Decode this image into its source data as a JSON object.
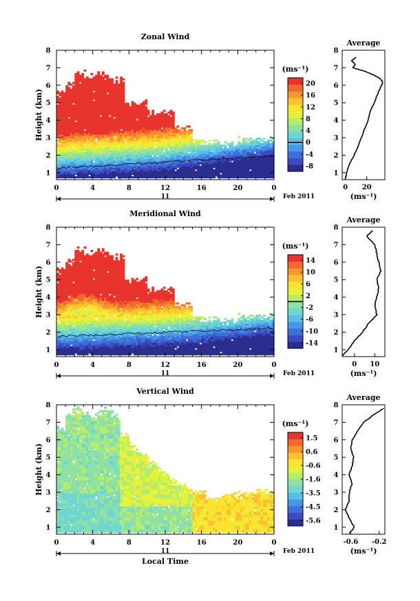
{
  "chart_data": [
    {
      "type": "heatmap",
      "title": "Zonal Wind",
      "ylabel": "Height (km)",
      "xlabel": "",
      "x_ticks": [
        "0",
        "4",
        "8",
        "12",
        "16",
        "20",
        "0"
      ],
      "y_ticks": [
        "1",
        "2",
        "3",
        "4",
        "5",
        "6",
        "7",
        "8"
      ],
      "xlim": [
        0,
        24
      ],
      "ylim": [
        0.6,
        8
      ],
      "date_label": "11",
      "month_label": "Feb 2011",
      "colorbar": {
        "unit": "(ms⁻¹)",
        "ticks": [
          "20",
          "16",
          "12",
          "8",
          "4",
          "0",
          "-4",
          "-8"
        ],
        "range": [
          -10,
          22
        ],
        "zero_line": 0
      },
      "profile": {
        "title": "Average",
        "x_ticks": [
          "0",
          "20"
        ],
        "xlim": [
          -3,
          37
        ],
        "unit": "(ms⁻¹)",
        "height": [
          0.65,
          1.0,
          1.5,
          2.0,
          2.5,
          3.0,
          3.5,
          4.0,
          4.5,
          5.0,
          5.5,
          6.0,
          6.2,
          6.4,
          6.6,
          6.8,
          7.0,
          7.2,
          7.4,
          7.6
        ],
        "value": [
          0,
          1,
          4,
          8,
          12,
          15,
          18,
          21,
          23,
          27,
          30,
          34,
          35,
          32,
          26,
          18,
          7,
          9,
          6,
          10
        ]
      },
      "field": "zonal"
    },
    {
      "type": "heatmap",
      "title": "Meridional Wind",
      "ylabel": "Height (km)",
      "xlabel": "",
      "x_ticks": [
        "0",
        "4",
        "8",
        "12",
        "16",
        "20",
        "0"
      ],
      "y_ticks": [
        "1",
        "2",
        "3",
        "4",
        "5",
        "6",
        "7",
        "8"
      ],
      "xlim": [
        0,
        24
      ],
      "ylim": [
        0.6,
        8
      ],
      "date_label": "11",
      "month_label": "Feb 2011",
      "colorbar": {
        "unit": "(ms⁻¹)",
        "ticks": [
          "14",
          "10",
          "6",
          "2",
          "-2",
          "-6",
          "-10",
          "-14"
        ],
        "range": [
          -16,
          16
        ],
        "zero_line": 0
      },
      "profile": {
        "title": "Average",
        "x_ticks": [
          "0",
          "10"
        ],
        "xlim": [
          -6,
          15
        ],
        "unit": "(ms⁻¹)",
        "height": [
          0.65,
          1.0,
          1.5,
          2.0,
          2.5,
          3.0,
          3.5,
          4.0,
          4.5,
          5.0,
          5.5,
          6.0,
          6.5,
          7.0,
          7.5,
          7.8
        ],
        "value": [
          -6,
          -3,
          0,
          4,
          7,
          11,
          10,
          11,
          12,
          11,
          13,
          12,
          11,
          10,
          6,
          9
        ]
      },
      "field": "meridional"
    },
    {
      "type": "heatmap",
      "title": "Vertical Wind",
      "ylabel": "Height (km)",
      "xlabel": "Local Time",
      "x_ticks": [
        "0",
        "4",
        "8",
        "12",
        "16",
        "20",
        "0"
      ],
      "y_ticks": [
        "1",
        "2",
        "3",
        "4",
        "5",
        "6",
        "7",
        "8"
      ],
      "xlim": [
        0,
        24
      ],
      "ylim": [
        0.6,
        8
      ],
      "date_label": "11",
      "month_label": "Feb 2011",
      "colorbar": {
        "unit": "(ms⁻¹)",
        "ticks": [
          "1.5",
          "0.6",
          "-0.6",
          "-1.6",
          "-3.5",
          "-4.5",
          "-5.6"
        ],
        "range": [
          -6,
          2
        ],
        "zero_line": null
      },
      "profile": {
        "title": "Average",
        "x_ticks": [
          "-0.6",
          "-0.2"
        ],
        "xlim": [
          -0.72,
          -0.12
        ],
        "unit": "(ms⁻¹)",
        "height": [
          0.65,
          1.0,
          1.5,
          2.0,
          2.5,
          3.0,
          3.5,
          4.0,
          4.5,
          5.0,
          5.5,
          6.0,
          6.5,
          7.0,
          7.5,
          7.8
        ],
        "value": [
          -0.62,
          -0.55,
          -0.62,
          -0.68,
          -0.62,
          -0.62,
          -0.58,
          -0.62,
          -0.58,
          -0.56,
          -0.6,
          -0.58,
          -0.5,
          -0.42,
          -0.25,
          -0.14
        ]
      },
      "field": "vertical"
    }
  ]
}
